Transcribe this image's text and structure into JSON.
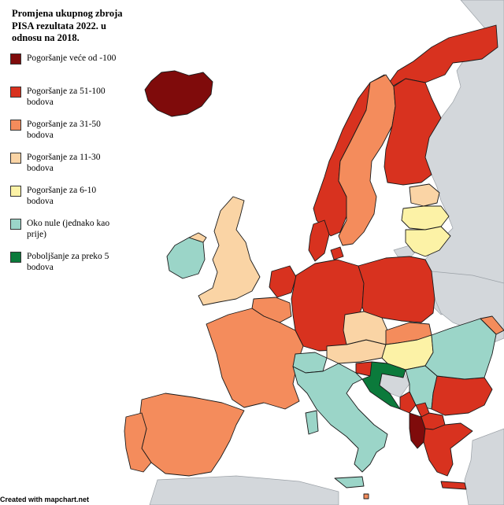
{
  "legend": {
    "title": "Promjena ukupnog zbroja PISA rezultata 2022. u odnosu na 2018.",
    "items": [
      {
        "label": "Pogoršanje veće od -100",
        "color": "#7f0b0b"
      },
      {
        "label": "Pogoršanje za 51-100 bodova",
        "color": "#d8321f"
      },
      {
        "label": "Pogoršanje za 31-50 bodova",
        "color": "#f48c5c"
      },
      {
        "label": "Pogoršanje za 11-30 bodova",
        "color": "#fad4a5"
      },
      {
        "label": "Pogoršanje za 6-10 bodova",
        "color": "#fcf2a6"
      },
      {
        "label": "Oko nule (jednako kao prije)",
        "color": "#9bd5c8"
      },
      {
        "label": "Poboljšanje za preko 5 bodova",
        "color": "#0b7a3b"
      }
    ]
  },
  "credit": "Created with mapchart.net",
  "countries": [
    {
      "name": "Iceland",
      "cat": 0
    },
    {
      "name": "Norway",
      "cat": 1
    },
    {
      "name": "Sweden",
      "cat": 2
    },
    {
      "name": "Finland",
      "cat": 1
    },
    {
      "name": "Estonia",
      "cat": 3
    },
    {
      "name": "Latvia",
      "cat": 4
    },
    {
      "name": "Lithuania",
      "cat": 4
    },
    {
      "name": "Denmark",
      "cat": 1
    },
    {
      "name": "Ireland",
      "cat": 5
    },
    {
      "name": "United Kingdom",
      "cat": 3
    },
    {
      "name": "Netherlands",
      "cat": 1
    },
    {
      "name": "Belgium",
      "cat": 2
    },
    {
      "name": "Germany",
      "cat": 1
    },
    {
      "name": "Poland",
      "cat": 1
    },
    {
      "name": "France",
      "cat": 2
    },
    {
      "name": "Spain",
      "cat": 2
    },
    {
      "name": "Portugal",
      "cat": 2
    },
    {
      "name": "Switzerland",
      "cat": 5
    },
    {
      "name": "Austria",
      "cat": 3
    },
    {
      "name": "Czechia",
      "cat": 3
    },
    {
      "name": "Slovakia",
      "cat": 2
    },
    {
      "name": "Hungary",
      "cat": 4
    },
    {
      "name": "Slovenia",
      "cat": 1
    },
    {
      "name": "Croatia",
      "cat": 6
    },
    {
      "name": "Bosnia and Herzegovina",
      "cat": null
    },
    {
      "name": "Serbia",
      "cat": 5
    },
    {
      "name": "Montenegro",
      "cat": 1
    },
    {
      "name": "Albania",
      "cat": 0
    },
    {
      "name": "North Macedonia",
      "cat": 1
    },
    {
      "name": "Greece",
      "cat": 1
    },
    {
      "name": "Bulgaria",
      "cat": 1
    },
    {
      "name": "Romania",
      "cat": 5
    },
    {
      "name": "Moldova",
      "cat": 2
    },
    {
      "name": "Italy",
      "cat": 5
    },
    {
      "name": "Malta",
      "cat": 2
    },
    {
      "name": "Kosovo",
      "cat": 1
    }
  ]
}
